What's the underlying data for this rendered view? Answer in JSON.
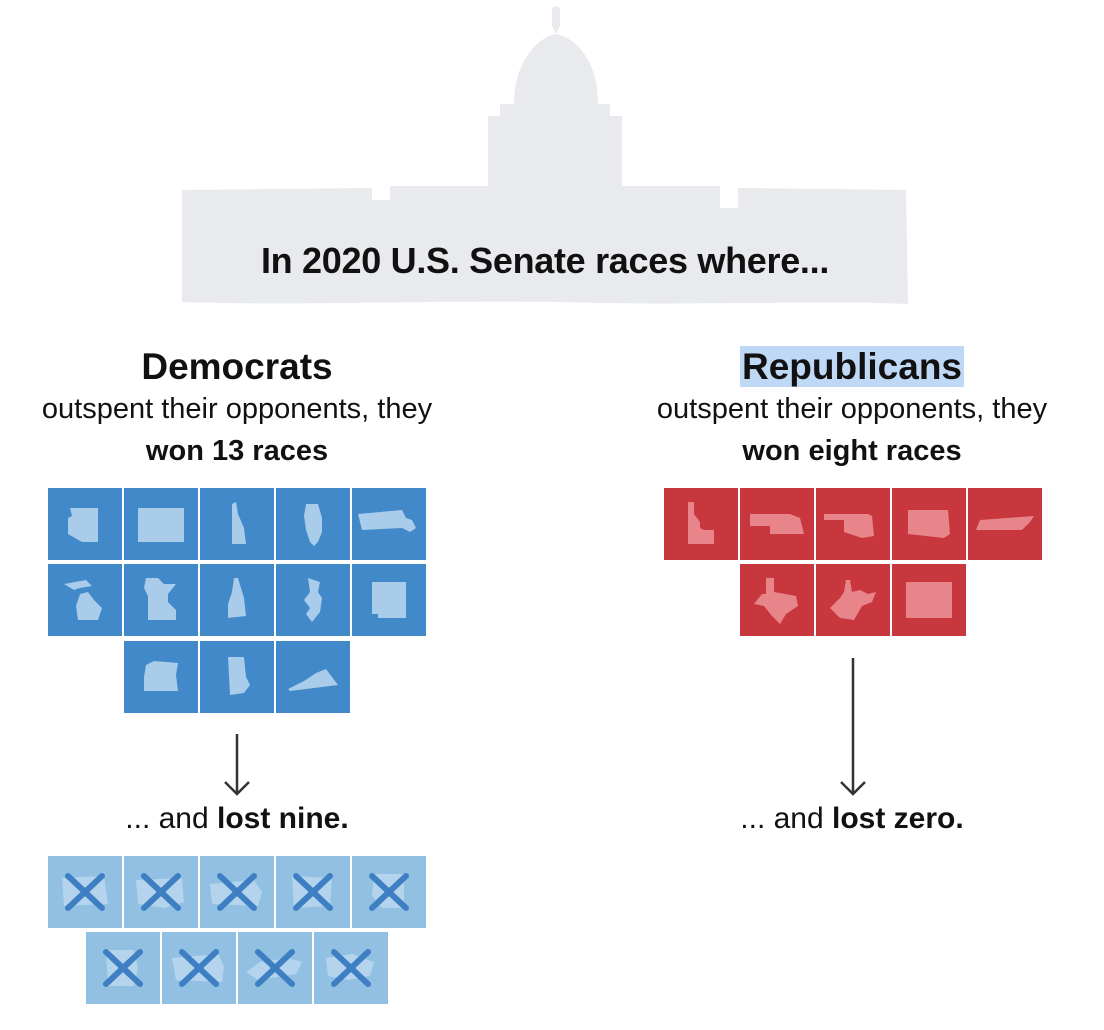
{
  "title": "In 2020 U.S. Senate races where...",
  "democrats": {
    "party": "Democrats",
    "description": "outspent their opponents, they",
    "won_text": "won 13 races",
    "won_count": 13,
    "lost_prefix": "... and ",
    "lost_text": "lost nine.",
    "lost_count": 9,
    "won_states": [
      "Arizona",
      "Colorado",
      "Delaware",
      "Illinois",
      "Massachusetts",
      "Michigan",
      "Minnesota",
      "New Hampshire",
      "New Jersey",
      "New Mexico",
      "Oregon",
      "Rhode Island",
      "Virginia"
    ],
    "lost_states": [
      "state",
      "state",
      "state",
      "state",
      "state",
      "state",
      "state",
      "state",
      "state"
    ]
  },
  "republicans": {
    "party": "Republicans",
    "description": "outspent their opponents, they",
    "won_text": "won eight races",
    "won_count": 8,
    "lost_prefix": "... and ",
    "lost_text": "lost zero.",
    "lost_count": 0,
    "won_states": [
      "Idaho",
      "Nebraska",
      "Oklahoma",
      "South Dakota",
      "Tennessee",
      "Texas",
      "West Virginia",
      "Wyoming"
    ]
  },
  "colors": {
    "dem_win": "#4189c9",
    "dem_lose": "#92c0e3",
    "rep_win": "#c8373e",
    "state_shape": "#a8cce9",
    "capitol": "#e8eaed"
  }
}
